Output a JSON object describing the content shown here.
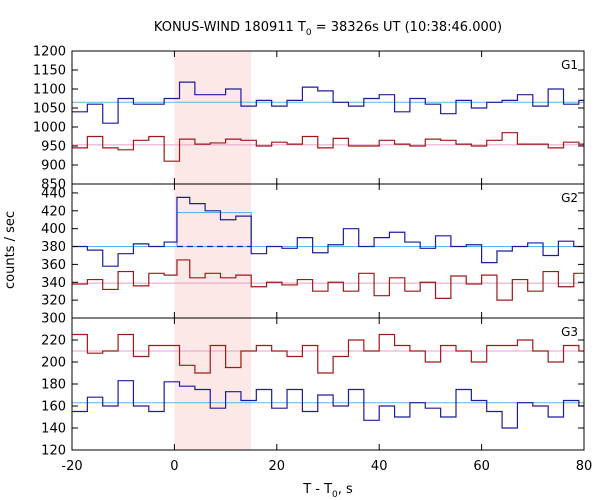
{
  "chart_data": {
    "type": "line",
    "title_main": "KONUS-WIND 180911 T",
    "title_sub": "0",
    "title_rest": " = 38326s UT (10:38:46.000)",
    "xlabel_main": "T - T",
    "xlabel_sub": "0",
    "xlabel_rest": ", s",
    "ylabel": "counts / sec",
    "xlim": [
      -20,
      80
    ],
    "xticks": [
      -20,
      0,
      20,
      40,
      60,
      80
    ],
    "shaded_interval": [
      0,
      15
    ],
    "colors": {
      "blue": "#1c1c9c",
      "red": "#a01818",
      "bg_blue": "#58b8e8",
      "bg_red": "#e8a0c8",
      "shade": "#fde8e8",
      "dashed": "#1c1c9c"
    },
    "panels": [
      {
        "label": "G1",
        "ylim": [
          850,
          1200
        ],
        "yticks": [
          850,
          900,
          950,
          1000,
          1050,
          1100,
          1150,
          1200
        ],
        "series": [
          {
            "color": "blue",
            "edges": [
              -20,
              -17,
              -14,
              -11,
              -8,
              -5,
              -2,
              1,
              4,
              7,
              10,
              13,
              16,
              19,
              22,
              25,
              28,
              31,
              34,
              37,
              40,
              43,
              46,
              49,
              52,
              55,
              58,
              61,
              64,
              67,
              70,
              73,
              76,
              79,
              80
            ],
            "values": [
              1040,
              1060,
              1010,
              1075,
              1060,
              1060,
              1075,
              1118,
              1085,
              1085,
              1100,
              1055,
              1070,
              1055,
              1070,
              1105,
              1095,
              1065,
              1055,
              1075,
              1085,
              1040,
              1075,
              1060,
              1035,
              1070,
              1050,
              1065,
              1070,
              1085,
              1055,
              1100,
              1060,
              1070
            ]
          },
          {
            "color": "red",
            "edges": [
              -20,
              -17,
              -14,
              -11,
              -8,
              -5,
              -2,
              1,
              4,
              7,
              10,
              13,
              16,
              19,
              22,
              25,
              28,
              31,
              34,
              37,
              40,
              43,
              46,
              49,
              52,
              55,
              58,
              61,
              64,
              67,
              70,
              73,
              76,
              79,
              80
            ],
            "values": [
              945,
              975,
              945,
              940,
              965,
              975,
              910,
              968,
              955,
              958,
              968,
              965,
              950,
              960,
              955,
              975,
              945,
              970,
              950,
              950,
              965,
              955,
              950,
              968,
              965,
              955,
              950,
              965,
              985,
              955,
              955,
              945,
              960,
              955
            ]
          }
        ],
        "backgrounds": [
          {
            "color": "bg_blue",
            "value": 1065
          },
          {
            "color": "bg_red",
            "value": 953
          }
        ]
      },
      {
        "label": "G2",
        "ylim": [
          300,
          450
        ],
        "yticks": [
          300,
          320,
          340,
          360,
          380,
          400,
          420,
          440
        ],
        "series": [
          {
            "color": "blue",
            "edges": [
              -20,
              -17,
              -14,
              -11,
              -8,
              -5,
              -2,
              0.5,
              3,
              6,
              9,
              12,
              15,
              18,
              21,
              24,
              27,
              30,
              33,
              36,
              39,
              42,
              45,
              48,
              51,
              54,
              57,
              60,
              63,
              66,
              69,
              72,
              75,
              78,
              80
            ],
            "values": [
              380,
              376,
              358,
              372,
              383,
              380,
              385,
              435,
              428,
              420,
              410,
              414,
              372,
              380,
              378,
              390,
              373,
              382,
              400,
              380,
              390,
              396,
              385,
              378,
              392,
              380,
              382,
              362,
              375,
              380,
              384,
              370,
              386,
              380
            ]
          },
          {
            "color": "red",
            "edges": [
              -20,
              -17,
              -14,
              -11,
              -8,
              -5,
              -2,
              0.5,
              3,
              6,
              9,
              12,
              15,
              18,
              21,
              24,
              27,
              30,
              33,
              36,
              39,
              42,
              45,
              48,
              51,
              54,
              57,
              60,
              63,
              66,
              69,
              72,
              75,
              78,
              80
            ],
            "values": [
              338,
              343,
              332,
              352,
              336,
              350,
              348,
              365,
              345,
              350,
              345,
              348,
              335,
              340,
              337,
              343,
              330,
              340,
              330,
              350,
              325,
              345,
              330,
              340,
              322,
              347,
              338,
              348,
              320,
              343,
              330,
              352,
              335,
              350
            ]
          }
        ],
        "backgrounds": [
          {
            "color": "bg_blue",
            "value": 380
          },
          {
            "color": "bg_red",
            "value": 339
          }
        ],
        "model_step": {
          "color": "bg_blue",
          "x0": 0.5,
          "x1": 15,
          "value": 418
        },
        "dashed_line": {
          "color": "dashed",
          "x0": 0.5,
          "x1": 15,
          "value": 380
        }
      },
      {
        "label": "G3",
        "ylim": [
          120,
          240
        ],
        "yticks": [
          120,
          140,
          160,
          180,
          200,
          220
        ],
        "series": [
          {
            "color": "blue",
            "edges": [
              -20,
              -17,
              -14,
              -11,
              -8,
              -5,
              -2,
              1,
              4,
              7,
              10,
              13,
              16,
              19,
              22,
              25,
              28,
              31,
              34,
              37,
              40,
              43,
              46,
              49,
              52,
              55,
              58,
              61,
              64,
              67,
              70,
              73,
              76,
              79,
              80
            ],
            "values": [
              155,
              168,
              160,
              183,
              160,
              155,
              182,
              178,
              175,
              158,
              173,
              165,
              175,
              158,
              175,
              155,
              170,
              160,
              175,
              147,
              160,
              150,
              163,
              158,
              150,
              175,
              165,
              155,
              140,
              163,
              160,
              150,
              165,
              160
            ]
          },
          {
            "color": "red",
            "edges": [
              -20,
              -17,
              -14,
              -11,
              -8,
              -5,
              -2,
              1,
              4,
              7,
              10,
              13,
              16,
              19,
              22,
              25,
              28,
              31,
              34,
              37,
              40,
              43,
              46,
              49,
              52,
              55,
              58,
              61,
              64,
              67,
              70,
              73,
              76,
              79,
              80
            ],
            "values": [
              225,
              208,
              210,
              225,
              205,
              215,
              215,
              197,
              190,
              215,
              195,
              210,
              215,
              210,
              205,
              215,
              190,
              205,
              220,
              210,
              225,
              215,
              210,
              200,
              215,
              210,
              200,
              215,
              215,
              220,
              210,
              200,
              215,
              210
            ]
          }
        ],
        "backgrounds": [
          {
            "color": "bg_blue",
            "value": 163
          },
          {
            "color": "bg_red",
            "value": 210
          }
        ]
      }
    ]
  }
}
